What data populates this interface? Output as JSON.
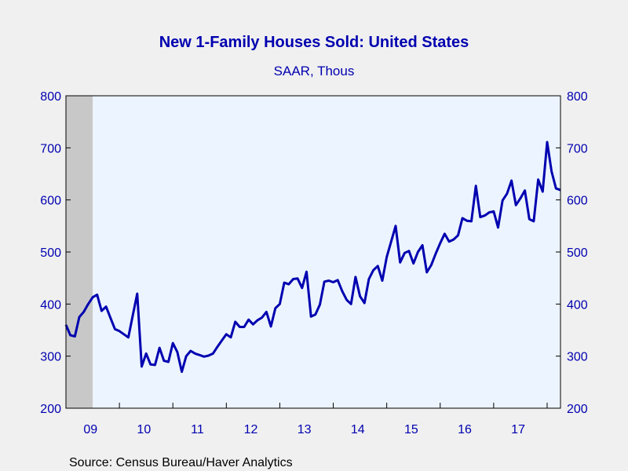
{
  "chart_data": {
    "type": "line",
    "title": "New 1-Family Houses Sold: United States",
    "subtitle": "SAAR, Thous",
    "source": "Source:  Census Bureau/Haver Analytics",
    "ylim": [
      200,
      800
    ],
    "yticks": [
      200,
      300,
      400,
      500,
      600,
      700,
      800
    ],
    "x_tick_labels": [
      "09",
      "10",
      "11",
      "12",
      "13",
      "14",
      "15",
      "16",
      "17"
    ],
    "x_start": "2009-01",
    "recession_shading": {
      "from": "2009-01",
      "to": "2009-06"
    },
    "grid": false,
    "colors": {
      "line": "#0000b0",
      "plot_bg": "#ecf4ff",
      "recession": "#c8c8c8",
      "text": "#0000b0",
      "axis": "#000000"
    },
    "series": [
      {
        "values": [
          360,
          340,
          338,
          375,
          385,
          400,
          413,
          418,
          387,
          395,
          373,
          352,
          348,
          342,
          336,
          378,
          420,
          280,
          305,
          284,
          283,
          316,
          291,
          289,
          325,
          308,
          270,
          300,
          310,
          305,
          302,
          299,
          301,
          305,
          318,
          330,
          342,
          336,
          366,
          356,
          356,
          370,
          361,
          369,
          374,
          385,
          357,
          392,
          400,
          441,
          438,
          448,
          449,
          431,
          462,
          376,
          380,
          399,
          443,
          445,
          442,
          446,
          425,
          408,
          400,
          452,
          415,
          402,
          448,
          465,
          473,
          445,
          490,
          520,
          550,
          480,
          498,
          502,
          478,
          500,
          513,
          461,
          475,
          497,
          517,
          535,
          520,
          524,
          532,
          565,
          560,
          559,
          627,
          567,
          570,
          576,
          578,
          547,
          599,
          612,
          637,
          590,
          603,
          618,
          563,
          559,
          639,
          616,
          711,
          655,
          622,
          619
        ]
      }
    ]
  }
}
